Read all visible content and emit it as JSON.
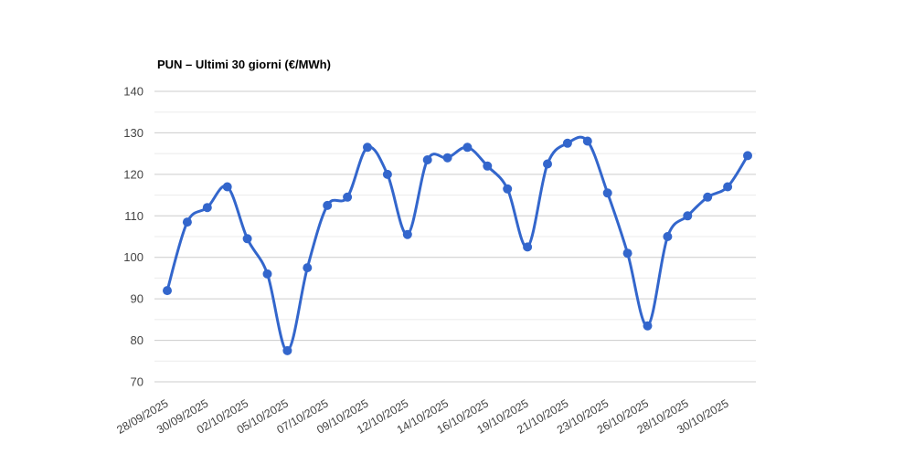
{
  "chart": {
    "title": "PUN – Ultimi 30 giorni (€/MWh)"
  },
  "chart_data": {
    "type": "line",
    "title": "PUN – Ultimi 30 giorni (€/MWh)",
    "curve": "smooth",
    "legend": "none",
    "x_tick_labels": [
      "28/09/2025",
      "30/09/2025",
      "02/10/2025",
      "05/10/2025",
      "07/10/2025",
      "09/10/2025",
      "12/10/2025",
      "14/10/2025",
      "16/10/2025",
      "19/10/2025",
      "21/10/2025",
      "23/10/2025",
      "26/10/2025",
      "28/10/2025",
      "30/10/2025"
    ],
    "x_label_every_n_points": 2,
    "x_label_rotation_deg": -30,
    "values": [
      92,
      108.5,
      112,
      117,
      104.5,
      96,
      77.5,
      97.5,
      112.5,
      114.5,
      126.5,
      120,
      105.5,
      123.5,
      124,
      126.5,
      122,
      116.5,
      102.5,
      122.5,
      127.5,
      128,
      115.5,
      101,
      83.5,
      105,
      110,
      114.5,
      117,
      124.5
    ],
    "ylim": [
      70,
      140
    ],
    "y_ticks": [
      140,
      130,
      120,
      110,
      100,
      90,
      80,
      70
    ],
    "minor_gridline_step": 5,
    "grid": true,
    "colors": {
      "series": "#3366cc",
      "grid_major": "#cccccc",
      "grid_minor": "#ebebeb",
      "axis_text": "#444444",
      "title_text": "#000000",
      "background": "#ffffff"
    }
  }
}
